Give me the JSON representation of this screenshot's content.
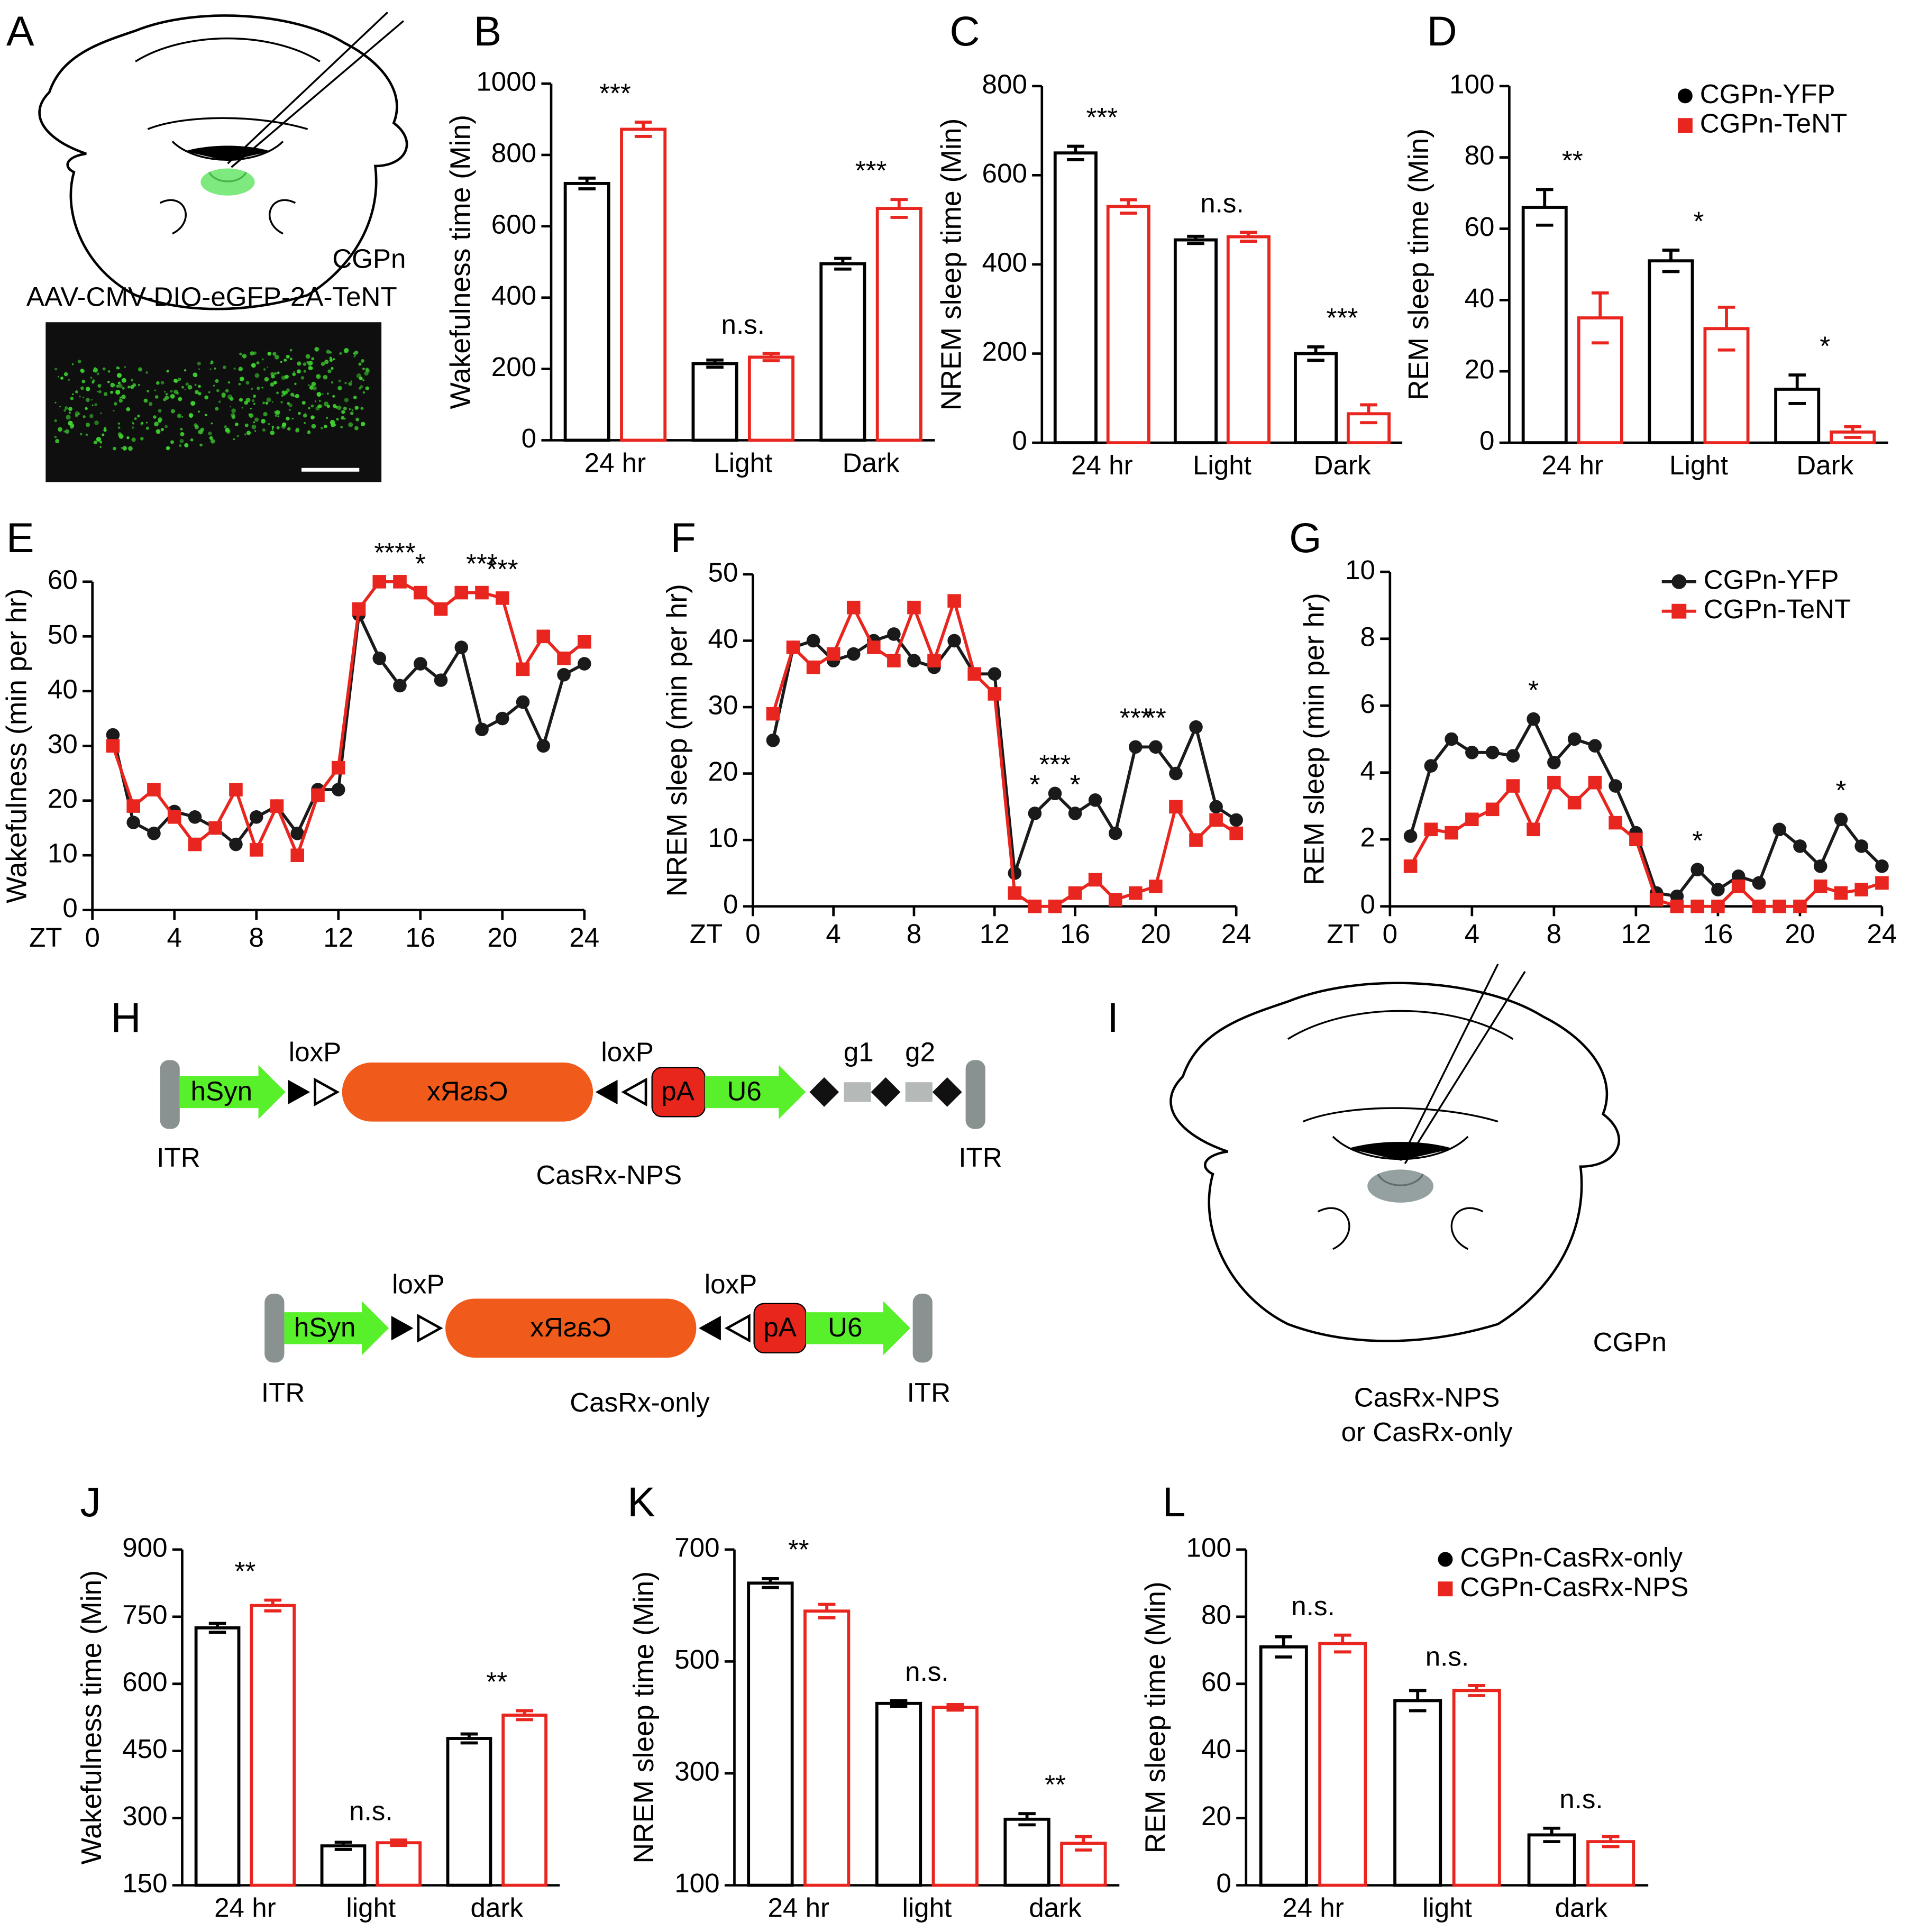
{
  "panel_labels": [
    "A",
    "B",
    "C",
    "D",
    "E",
    "F",
    "G",
    "H",
    "I",
    "J",
    "K",
    "L"
  ],
  "panel_a": {
    "region": "CGPn",
    "virus": "AAV-CMV-DIO-eGFP-2A-TeNT"
  },
  "panel_h": {
    "construct_1": {
      "loxp_left": "loxP",
      "loxp_right": "loxP",
      "promoter": "hSyn",
      "gene": "CasRx",
      "polya": "pA",
      "u6": "U6",
      "guide_1": "g1",
      "guide_2": "g2",
      "itr_left": "ITR",
      "itr_right": "ITR",
      "name": "CasRx-NPS"
    },
    "construct_2": {
      "loxp_left": "loxP",
      "loxp_right": "loxP",
      "promoter": "hSyn",
      "gene": "CasRx",
      "polya": "pA",
      "u6": "U6",
      "itr_left": "ITR",
      "itr_right": "ITR",
      "name": "CasRx-only"
    }
  },
  "panel_i": {
    "region": "CGPn",
    "virus_line_1": "CasRx-NPS",
    "virus_line_2": "or CasRx-only"
  },
  "chart_data": [
    {
      "type": "bar",
      "y_label": "Wakefulness time (Min)",
      "categories": [
        "24 hr",
        "Light",
        "Dark"
      ],
      "ylim": [
        0,
        1000
      ],
      "yticks": [
        0,
        200,
        400,
        600,
        800,
        1000
      ],
      "series": [
        {
          "color": "#000000",
          "values": [
            720,
            215,
            495
          ],
          "errors": [
            15,
            10,
            15
          ]
        },
        {
          "color": "#e8261f",
          "values": [
            872,
            233,
            650
          ],
          "errors": [
            20,
            10,
            25
          ]
        }
      ],
      "significance": [
        "***",
        "n.s.",
        "***"
      ]
    },
    {
      "type": "bar",
      "y_label": "NREM sleep time (Min)",
      "categories": [
        "24 hr",
        "Light",
        "Dark"
      ],
      "ylim": [
        0,
        800
      ],
      "yticks": [
        0,
        200,
        400,
        600,
        800
      ],
      "series": [
        {
          "color": "#000000",
          "values": [
            650,
            455,
            200
          ],
          "errors": [
            15,
            8,
            15
          ]
        },
        {
          "color": "#e8261f",
          "values": [
            530,
            462,
            65
          ],
          "errors": [
            15,
            10,
            20
          ]
        }
      ],
      "significance": [
        "***",
        "n.s.",
        "***"
      ]
    },
    {
      "type": "bar",
      "y_label": "REM sleep time (Min)",
      "categories": [
        "24 hr",
        "Light",
        "Dark"
      ],
      "ylim": [
        0,
        100
      ],
      "yticks": [
        0,
        20,
        40,
        60,
        80,
        100
      ],
      "legend": "upper right",
      "series": [
        {
          "name": "CGPn-YFP",
          "marker": "circle",
          "color": "#000000",
          "values": [
            66,
            51,
            15
          ],
          "errors": [
            5,
            3,
            4
          ]
        },
        {
          "name": "CGPn-TeNT",
          "marker": "square",
          "color": "#e8261f",
          "values": [
            35,
            32,
            3
          ],
          "errors": [
            7,
            6,
            1.5
          ]
        }
      ],
      "significance": [
        "**",
        "*",
        "*"
      ]
    },
    {
      "type": "line",
      "y_label": "Wakefulness (min per hr)",
      "x_label": "ZT",
      "xlim": [
        0,
        24
      ],
      "xticks": [
        0,
        4,
        8,
        12,
        16,
        20,
        24
      ],
      "ylim": [
        0,
        60
      ],
      "yticks": [
        0,
        10,
        20,
        30,
        40,
        50,
        60
      ],
      "x": [
        1,
        2,
        3,
        4,
        5,
        6,
        7,
        8,
        9,
        10,
        11,
        12,
        13,
        14,
        15,
        16,
        17,
        18,
        19,
        20,
        21,
        22,
        23,
        24
      ],
      "series": [
        {
          "marker": "circle",
          "color": "#1a1a1a",
          "values": [
            32,
            16,
            14,
            18,
            17,
            15,
            12,
            17,
            19,
            14,
            22,
            22,
            54,
            46,
            41,
            45,
            42,
            48,
            33,
            35,
            38,
            30,
            43,
            45
          ]
        },
        {
          "marker": "square",
          "color": "#e8261f",
          "values": [
            30,
            19,
            22,
            17,
            12,
            15,
            22,
            11,
            19,
            10,
            21,
            26,
            55,
            60,
            60,
            58,
            55,
            58,
            58,
            57,
            44,
            50,
            46,
            49
          ]
        }
      ],
      "annotations": [
        {
          "text": "*",
          "x": 14
        },
        {
          "text": "***",
          "x": 15
        },
        {
          "text": "*",
          "x": 16
        },
        {
          "text": "***",
          "x": 19
        },
        {
          "text": "***",
          "x": 20
        }
      ]
    },
    {
      "type": "line",
      "y_label": "NREM sleep (min per hr)",
      "x_label": "ZT",
      "xlim": [
        0,
        24
      ],
      "xticks": [
        0,
        4,
        8,
        12,
        16,
        20,
        24
      ],
      "ylim": [
        0,
        50
      ],
      "yticks": [
        0,
        10,
        20,
        30,
        40,
        50
      ],
      "x": [
        1,
        2,
        3,
        4,
        5,
        6,
        7,
        8,
        9,
        10,
        11,
        12,
        13,
        14,
        15,
        16,
        17,
        18,
        19,
        20,
        21,
        22,
        23,
        24
      ],
      "series": [
        {
          "marker": "circle",
          "color": "#1a1a1a",
          "values": [
            25,
            39,
            40,
            37,
            38,
            40,
            41,
            37,
            36,
            40,
            35,
            35,
            5,
            14,
            17,
            14,
            16,
            11,
            24,
            24,
            20,
            27,
            15,
            13
          ]
        },
        {
          "marker": "square",
          "color": "#e8261f",
          "values": [
            29,
            39,
            36,
            38,
            45,
            39,
            37,
            45,
            37,
            46,
            35,
            32,
            2,
            0,
            0,
            2,
            4,
            1,
            2,
            3,
            15,
            10,
            13,
            11
          ]
        }
      ],
      "annotations": [
        {
          "text": "*",
          "x": 14
        },
        {
          "text": "***",
          "x": 15
        },
        {
          "text": "*",
          "x": 16
        },
        {
          "text": "***",
          "x": 19
        },
        {
          "text": "**",
          "x": 20
        }
      ]
    },
    {
      "type": "line",
      "y_label": "REM sleep (min per hr)",
      "x_label": "ZT",
      "xlim": [
        0,
        24
      ],
      "xticks": [
        0,
        4,
        8,
        12,
        16,
        20,
        24
      ],
      "ylim": [
        0,
        10
      ],
      "yticks": [
        0,
        2,
        4,
        6,
        8,
        10
      ],
      "legend": "upper right",
      "x": [
        1,
        2,
        3,
        4,
        5,
        6,
        7,
        8,
        9,
        10,
        11,
        12,
        13,
        14,
        15,
        16,
        17,
        18,
        19,
        20,
        21,
        22,
        23,
        24
      ],
      "series": [
        {
          "name": "CGPn-YFP",
          "marker": "circle",
          "color": "#1a1a1a",
          "values": [
            2.1,
            4.2,
            5.0,
            4.6,
            4.6,
            4.5,
            5.6,
            4.3,
            5.0,
            4.8,
            3.6,
            2.2,
            0.4,
            0.3,
            1.1,
            0.5,
            0.9,
            0.7,
            2.3,
            1.8,
            1.2,
            2.6,
            1.8,
            1.2
          ]
        },
        {
          "name": "CGPn-TeNT",
          "marker": "square",
          "color": "#e8261f",
          "values": [
            1.2,
            2.3,
            2.2,
            2.6,
            2.9,
            3.6,
            2.3,
            3.7,
            3.1,
            3.7,
            2.5,
            2.0,
            0.2,
            0,
            0,
            0,
            0.6,
            0,
            0,
            0,
            0.6,
            0.4,
            0.5,
            0.7
          ]
        }
      ],
      "annotations": [
        {
          "text": "*",
          "x": 7
        },
        {
          "text": "*",
          "x": 15
        },
        {
          "text": "*",
          "x": 22
        }
      ]
    },
    {
      "type": "bar",
      "y_label": "Wakefulness time (Min)",
      "categories": [
        "24 hr",
        "light",
        "dark"
      ],
      "ylim": [
        150,
        900
      ],
      "yticks": [
        150,
        300,
        450,
        600,
        750,
        900
      ],
      "series": [
        {
          "color": "#000000",
          "values": [
            725,
            238,
            478
          ],
          "errors": [
            10,
            8,
            10
          ]
        },
        {
          "color": "#e8261f",
          "values": [
            775,
            245,
            530
          ],
          "errors": [
            12,
            6,
            10
          ]
        }
      ],
      "significance": [
        "**",
        "n.s.",
        "**"
      ]
    },
    {
      "type": "bar",
      "y_label": "NREM sleep time (Min)",
      "categories": [
        "24 hr",
        "light",
        "dark"
      ],
      "ylim": [
        100,
        700
      ],
      "yticks": [
        100,
        300,
        500,
        700
      ],
      "series": [
        {
          "color": "#000000",
          "values": [
            640,
            425,
            218
          ],
          "errors": [
            8,
            5,
            10
          ]
        },
        {
          "color": "#e8261f",
          "values": [
            590,
            418,
            175
          ],
          "errors": [
            12,
            5,
            12
          ]
        }
      ],
      "significance": [
        "**",
        "n.s.",
        "**"
      ]
    },
    {
      "type": "bar",
      "y_label": "REM sleep time (Min)",
      "categories": [
        "24 hr",
        "light",
        "dark"
      ],
      "ylim": [
        0,
        100
      ],
      "yticks": [
        0,
        20,
        40,
        60,
        80,
        100
      ],
      "legend": "upper right",
      "series": [
        {
          "name": "CGPn-CasRx-only",
          "marker": "circle",
          "color": "#000000",
          "values": [
            71,
            55,
            15
          ],
          "errors": [
            3,
            3,
            2
          ]
        },
        {
          "name": "CGPn-CasRx-NPS",
          "marker": "square",
          "color": "#e8261f",
          "values": [
            72,
            58,
            13
          ],
          "errors": [
            2.5,
            1.5,
            1.5
          ]
        }
      ],
      "significance": [
        "n.s.",
        "n.s.",
        "n.s."
      ]
    }
  ]
}
